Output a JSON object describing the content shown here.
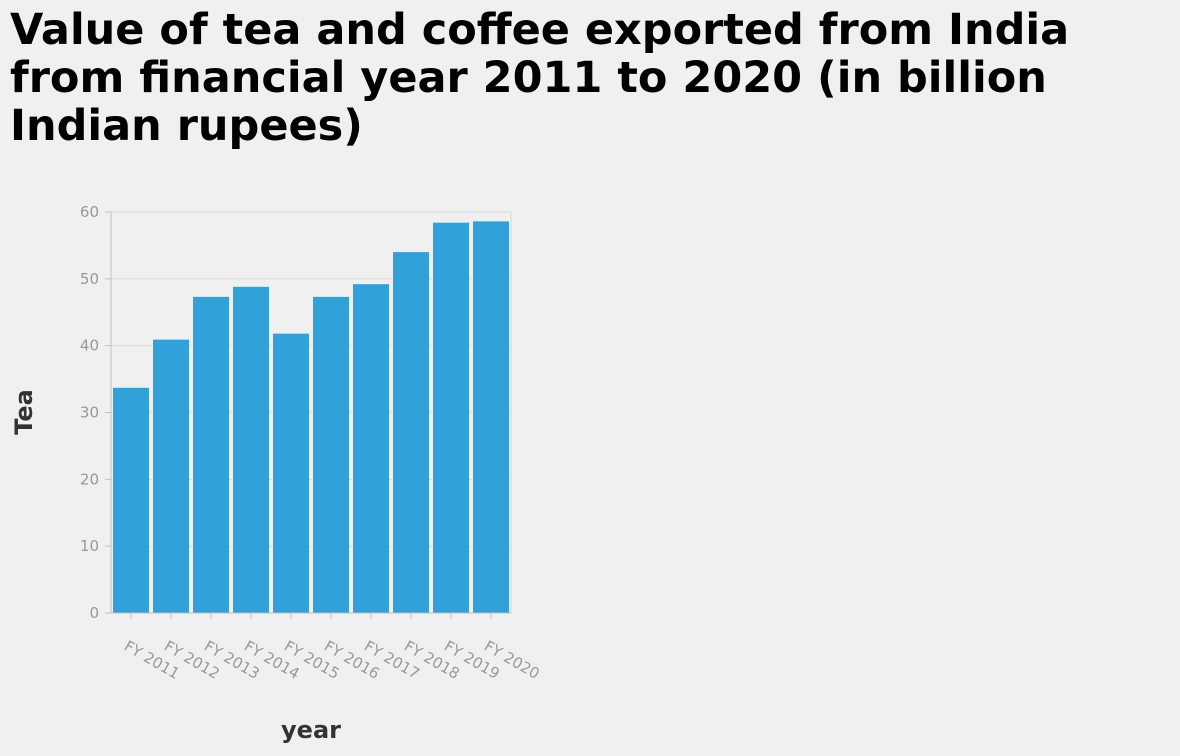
{
  "chart_data": {
    "type": "bar",
    "title": "Value of tea and coffee exported from India from financial year 2011 to 2020 (in billion Indian rupees)",
    "xlabel": "year",
    "ylabel": "Tea",
    "categories": [
      "FY 2011",
      "FY 2012",
      "FY 2013",
      "FY 2014",
      "FY 2015",
      "FY 2016",
      "FY 2017",
      "FY 2018",
      "FY 2019",
      "FY 2020"
    ],
    "values": [
      33.7,
      40.9,
      47.3,
      48.8,
      41.8,
      47.3,
      49.2,
      54.0,
      58.4,
      58.6
    ],
    "ylim": [
      0,
      60
    ],
    "yticks": [
      "0",
      "10",
      "20",
      "30",
      "40",
      "50",
      "60"
    ],
    "grid": true,
    "legend": "none",
    "colors": {
      "bar": "#31a1d9",
      "grid": "#d9d9d9",
      "axis": "#bfbfbf",
      "tick_text": "#999999",
      "title": "#000000",
      "axis_title": "#333333",
      "background": "#f0f0f0"
    }
  }
}
